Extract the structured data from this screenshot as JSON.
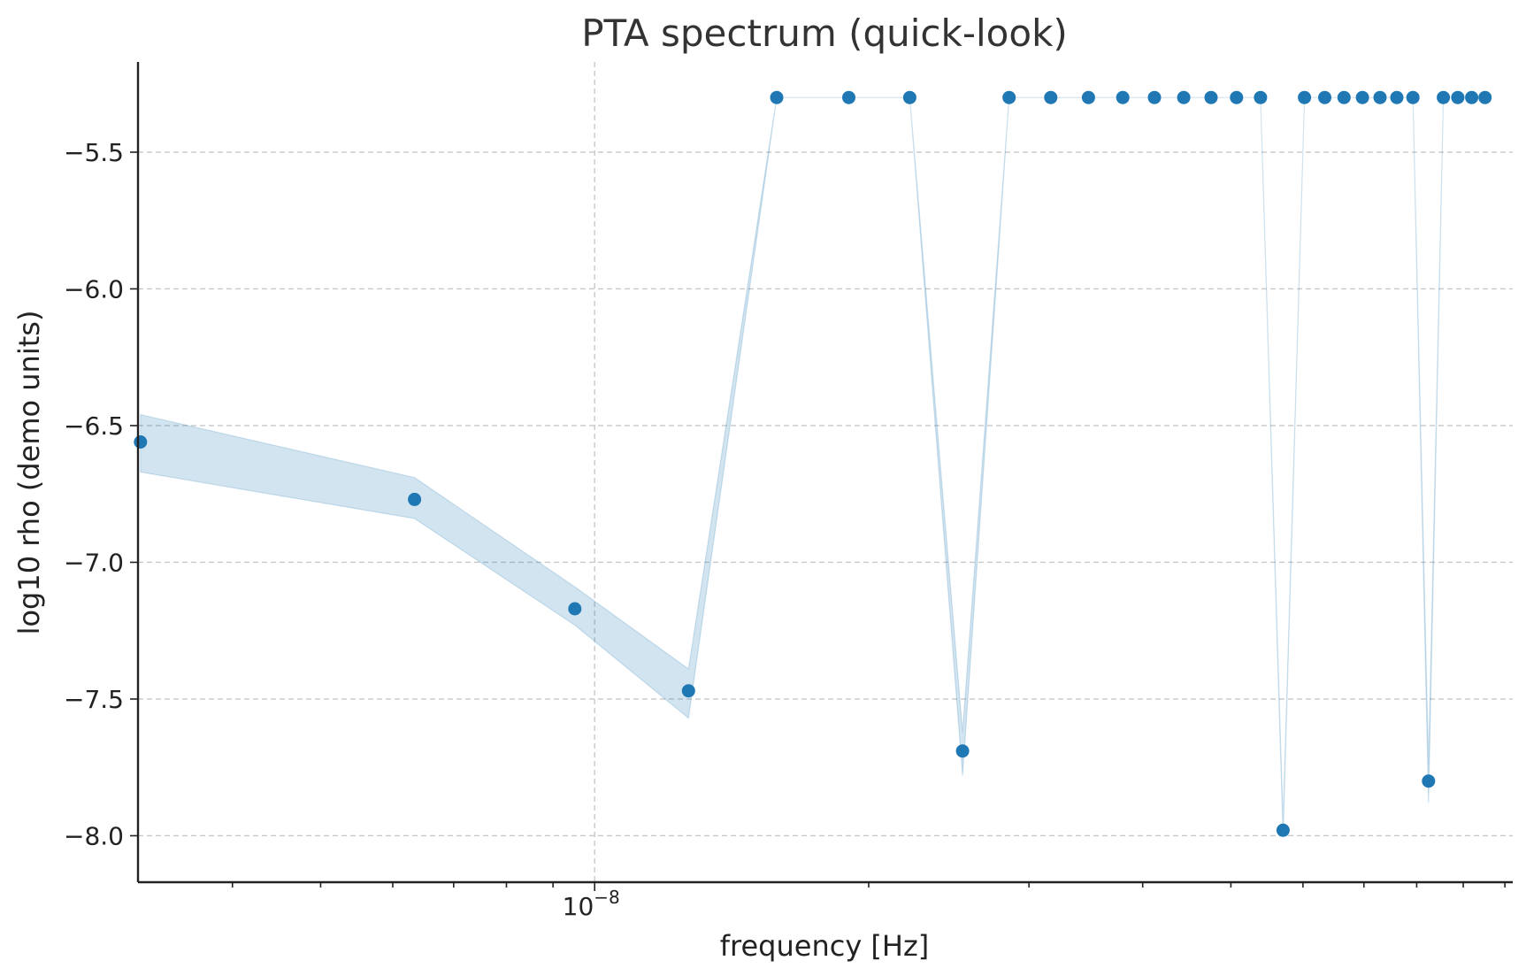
{
  "chart_data": {
    "type": "scatter",
    "title": "PTA spectrum (quick-look)",
    "xlabel": "frequency [Hz]",
    "ylabel": "log10 rho (demo units)",
    "x_scale": "log",
    "xlim": [
      3.15e-09,
      1.02e-07
    ],
    "ylim": [
      -8.17,
      -5.17
    ],
    "x_tick_label": {
      "base": "10",
      "exponent": "−8"
    },
    "y_tick_labels": [
      "−5.5",
      "−6.0",
      "−6.5",
      "−7.0",
      "−7.5",
      "−8.0"
    ],
    "y_ticks": [
      -5.5,
      -6.0,
      -6.5,
      -7.0,
      -7.5,
      -8.0
    ],
    "grid": true,
    "marker_color": "#1f77b4",
    "band_color": "#1f77b4",
    "x": [
      3.17e-09,
      6.34e-09,
      9.51e-09,
      1.268e-08,
      1.585e-08,
      1.902e-08,
      2.219e-08,
      2.536e-08,
      2.853e-08,
      3.17e-08,
      3.487e-08,
      3.804e-08,
      4.121e-08,
      4.438e-08,
      4.755e-08,
      5.072e-08,
      5.389e-08,
      5.706e-08,
      6.023e-08,
      6.34e-08,
      6.657e-08,
      6.974e-08,
      7.291e-08,
      7.608e-08,
      7.925e-08,
      8.242e-08,
      8.559e-08,
      8.876e-08,
      9.193e-08,
      9.51e-08
    ],
    "y": [
      -6.56,
      -6.77,
      -7.17,
      -7.47,
      -5.3,
      -5.3,
      -5.3,
      -7.69,
      -5.3,
      -5.3,
      -5.3,
      -5.3,
      -5.3,
      -5.3,
      -5.3,
      -5.3,
      -5.3,
      -7.98,
      -5.3,
      -5.3,
      -5.3,
      -5.3,
      -5.3,
      -5.3,
      -5.3,
      -7.8,
      -5.3,
      -5.3,
      -5.3,
      -5.3
    ],
    "band_low": [
      -6.67,
      -6.84,
      -7.23,
      -7.57,
      -5.3,
      -5.3,
      -5.3,
      -7.78,
      -5.3,
      -5.3,
      -5.3,
      -5.3,
      -5.3,
      -5.3,
      -5.3,
      -5.3,
      -5.3,
      -8.0,
      -5.3,
      -5.3,
      -5.3,
      -5.3,
      -5.3,
      -5.3,
      -5.3,
      -7.88,
      -5.3,
      -5.3,
      -5.3,
      -5.3
    ],
    "band_high": [
      -6.46,
      -6.69,
      -7.09,
      -7.39,
      -5.3,
      -5.3,
      -5.3,
      -7.62,
      -5.3,
      -5.3,
      -5.3,
      -5.3,
      -5.3,
      -5.3,
      -5.3,
      -5.3,
      -5.3,
      -7.95,
      -5.3,
      -5.3,
      -5.3,
      -5.3,
      -5.3,
      -5.3,
      -5.3,
      -7.74,
      -5.3,
      -5.3,
      -5.3,
      -5.3
    ]
  }
}
